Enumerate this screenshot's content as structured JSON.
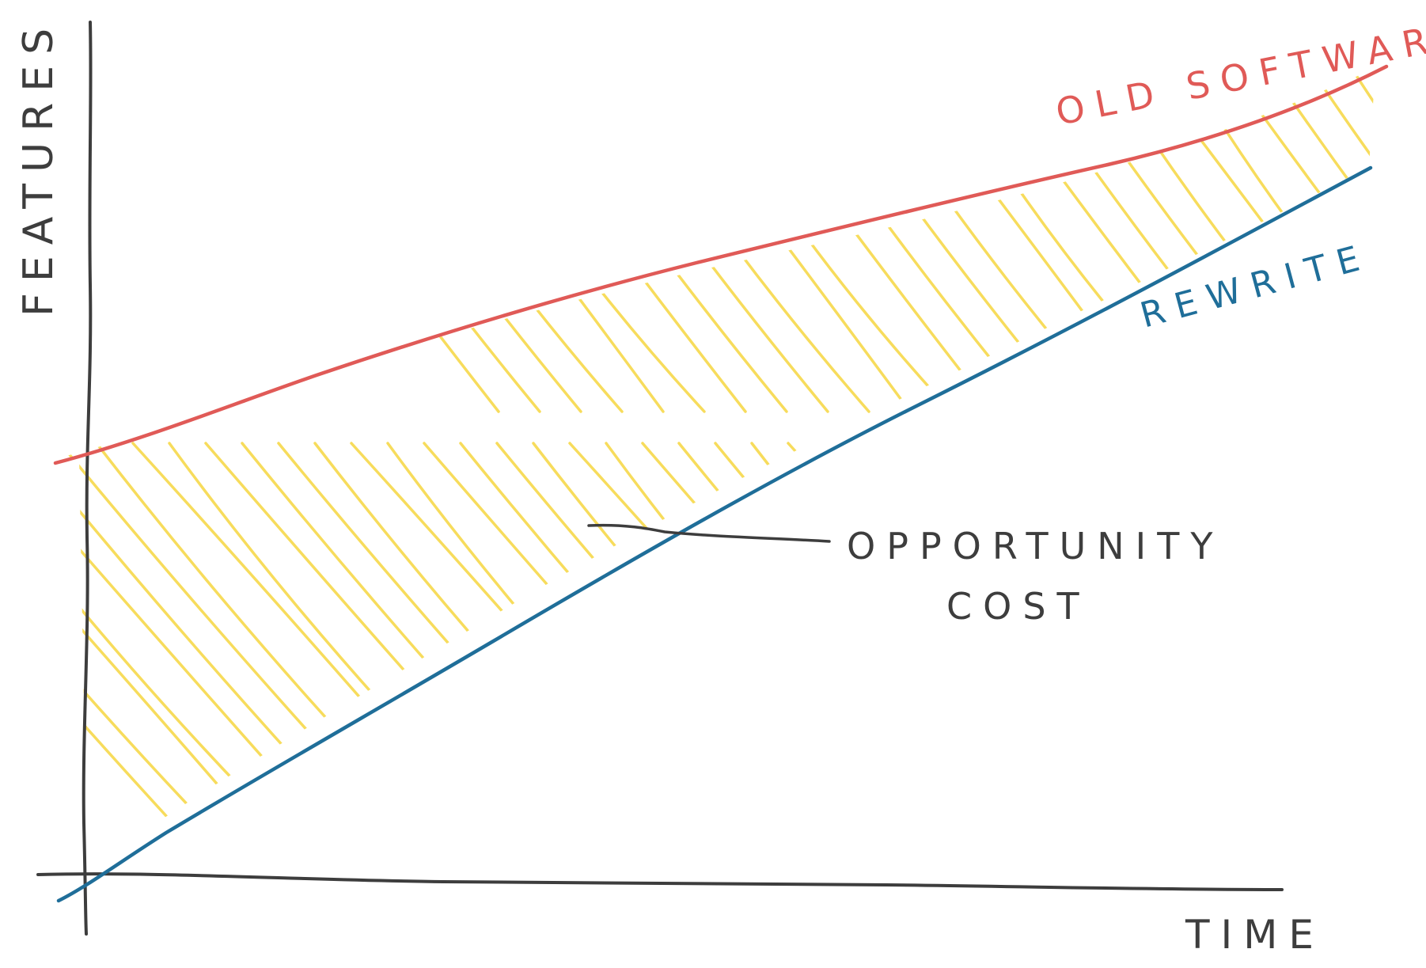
{
  "labels": {
    "y_axis": "FEATURES",
    "x_axis": "TIME",
    "old_software": "OLD SOFTWARE",
    "rewrite": "REWRITE",
    "opportunity_line1": "OPPORTUNITY",
    "opportunity_line2": "COST"
  },
  "colors": {
    "axis": "#3d3d3d",
    "old_software": "#e05a57",
    "rewrite": "#1f6e99",
    "hatch": "#f7dc5c",
    "annotation": "#3d3d3d"
  }
}
